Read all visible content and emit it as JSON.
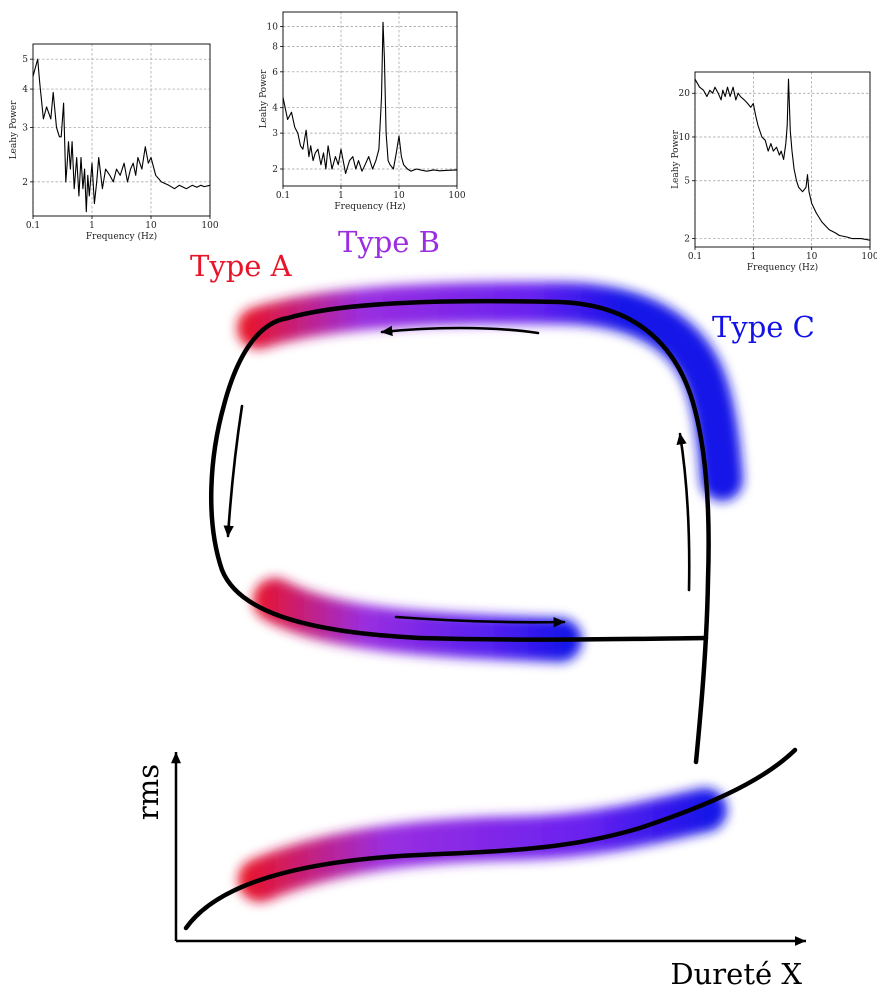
{
  "labels": {
    "type_a": "Type A",
    "type_b": "Type B",
    "type_c": "Type C",
    "rms": "rms",
    "hardness": "Dureté X"
  },
  "colors": {
    "type_a": "#e8142a",
    "type_b": "#9a2ee0",
    "type_c": "#1212e8",
    "curve": "#000000"
  },
  "chart_data": [
    {
      "type": "line",
      "xlabel": "Frequency (Hz)",
      "ylabel": "Leahy Power",
      "xscale": "log",
      "yscale": "log",
      "xlim": [
        0.1,
        100
      ],
      "ylim": [
        1.55,
        5.6
      ],
      "xticks": [
        "0.1",
        "1",
        "10",
        "100"
      ],
      "yticks": [
        "2",
        "3",
        "4",
        "5"
      ],
      "grid": true,
      "x": [
        0.1,
        0.11,
        0.12,
        0.13,
        0.15,
        0.17,
        0.2,
        0.22,
        0.25,
        0.28,
        0.3,
        0.33,
        0.36,
        0.38,
        0.4,
        0.43,
        0.46,
        0.5,
        0.55,
        0.6,
        0.65,
        0.7,
        0.75,
        0.8,
        0.85,
        0.9,
        1.0,
        1.1,
        1.2,
        1.3,
        1.5,
        1.7,
        2.0,
        2.3,
        2.6,
        3.0,
        3.5,
        4.0,
        4.5,
        5.0,
        5.5,
        6.0,
        7.0,
        8.0,
        9.0,
        10,
        12,
        15,
        20,
        25,
        30,
        40,
        50,
        60,
        70,
        80,
        100
      ],
      "values": [
        4.4,
        4.7,
        5.0,
        4.2,
        3.2,
        3.5,
        3.2,
        3.9,
        3.0,
        2.8,
        2.8,
        3.6,
        2.0,
        2.3,
        2.7,
        2.2,
        2.7,
        1.9,
        2.4,
        1.8,
        2.4,
        1.9,
        2.2,
        1.6,
        2.1,
        1.8,
        2.3,
        1.7,
        2.0,
        2.4,
        1.9,
        2.2,
        2.1,
        2.0,
        2.2,
        2.1,
        2.3,
        2.0,
        2.2,
        2.3,
        2.1,
        2.4,
        2.2,
        2.6,
        2.3,
        2.4,
        2.1,
        2.0,
        1.95,
        1.9,
        1.95,
        1.9,
        1.95,
        1.92,
        1.95,
        1.93,
        1.95
      ]
    },
    {
      "type": "line",
      "xlabel": "Frequency (Hz)",
      "ylabel": "Leahy Power",
      "xscale": "log",
      "yscale": "log",
      "xlim": [
        0.1,
        100
      ],
      "ylim": [
        1.65,
        11.8
      ],
      "xticks": [
        "0.1",
        "1",
        "10",
        "100"
      ],
      "yticks": [
        "2",
        "3",
        "4",
        "6",
        "8",
        "10"
      ],
      "grid": true,
      "x": [
        0.1,
        0.12,
        0.14,
        0.16,
        0.18,
        0.2,
        0.22,
        0.25,
        0.28,
        0.3,
        0.33,
        0.36,
        0.4,
        0.45,
        0.5,
        0.55,
        0.6,
        0.7,
        0.8,
        0.9,
        1.0,
        1.2,
        1.4,
        1.6,
        1.8,
        2.0,
        2.3,
        2.6,
        3.0,
        3.5,
        4.0,
        4.5,
        5.0,
        5.3,
        5.6,
        6.0,
        6.5,
        7.0,
        8.0,
        9.0,
        10,
        11,
        12,
        14,
        16,
        20,
        25,
        30,
        40,
        50,
        70,
        100
      ],
      "values": [
        4.5,
        3.5,
        3.8,
        3.2,
        3.0,
        2.6,
        2.5,
        3.1,
        2.3,
        2.6,
        2.2,
        2.4,
        2.5,
        2.1,
        2.4,
        2.0,
        2.6,
        2.0,
        2.3,
        2.1,
        2.5,
        1.9,
        2.2,
        2.3,
        2.0,
        2.2,
        1.95,
        2.1,
        2.3,
        2.0,
        2.2,
        2.5,
        4.5,
        10.5,
        7.0,
        3.0,
        2.2,
        2.1,
        2.0,
        2.4,
        2.9,
        2.3,
        2.1,
        2.0,
        1.95,
        2.0,
        1.97,
        1.95,
        1.98,
        1.96,
        1.97,
        1.98
      ]
    },
    {
      "type": "line",
      "xlabel": "Frequency (Hz)",
      "ylabel": "Leahy Power",
      "xscale": "log",
      "yscale": "log",
      "xlim": [
        0.1,
        100
      ],
      "ylim": [
        1.75,
        28
      ],
      "xticks": [
        "0.1",
        "1",
        "10",
        "100"
      ],
      "yticks": [
        "2",
        "5",
        "10",
        "20"
      ],
      "grid": true,
      "x": [
        0.1,
        0.12,
        0.14,
        0.16,
        0.18,
        0.2,
        0.22,
        0.25,
        0.28,
        0.3,
        0.33,
        0.36,
        0.4,
        0.45,
        0.5,
        0.55,
        0.6,
        0.7,
        0.8,
        0.9,
        1.0,
        1.1,
        1.2,
        1.4,
        1.6,
        1.8,
        2.0,
        2.2,
        2.5,
        2.8,
        3.0,
        3.3,
        3.6,
        3.8,
        4.0,
        4.3,
        4.6,
        5.0,
        5.5,
        6.0,
        7.0,
        8.0,
        8.5,
        9.0,
        10,
        12,
        15,
        20,
        25,
        30,
        40,
        50,
        70,
        100
      ],
      "values": [
        25,
        22,
        21,
        19,
        21,
        20,
        22,
        20,
        18,
        21,
        19,
        22,
        19,
        22,
        18,
        20,
        19,
        18,
        17,
        16,
        17,
        14,
        12,
        10,
        9.5,
        8,
        9,
        8,
        8.5,
        7.5,
        8,
        7,
        9,
        12,
        25,
        11,
        8,
        6,
        5,
        4.5,
        4.2,
        4.5,
        5.5,
        4.2,
        3.5,
        3.0,
        2.6,
        2.3,
        2.2,
        2.1,
        2.05,
        2.0,
        2.0,
        1.95
      ]
    }
  ]
}
